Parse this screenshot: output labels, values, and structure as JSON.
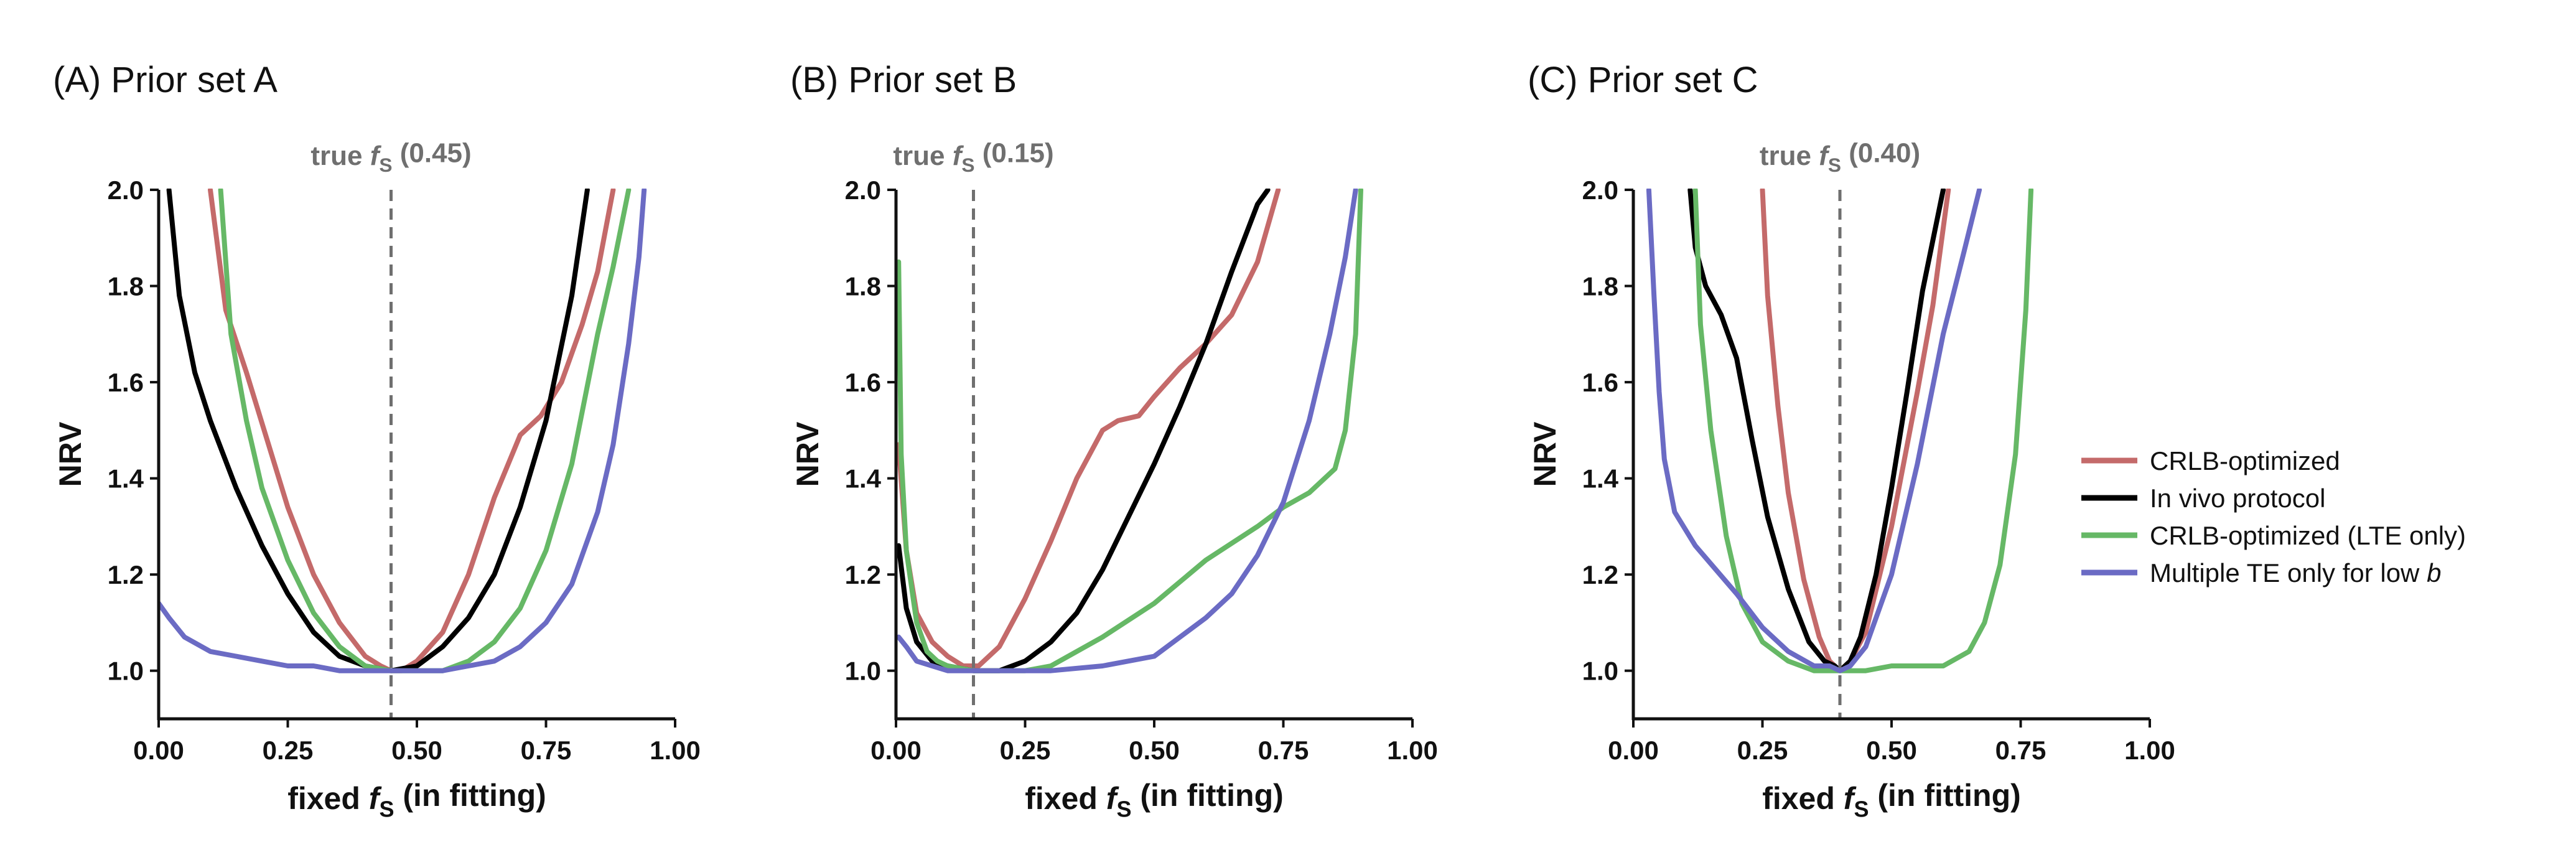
{
  "chart_data": [
    {
      "type": "line",
      "title": "(A) Prior set A",
      "xlabel": "fixed f_S (in fitting)",
      "ylabel": "NRV",
      "xlim": [
        0,
        1
      ],
      "ylim": [
        0.9,
        2.0
      ],
      "xticks": [
        "0.00",
        "0.25",
        "0.50",
        "0.75",
        "1.00"
      ],
      "yticks": [
        "1.0",
        "1.2",
        "1.4",
        "1.6",
        "1.8",
        "2.0"
      ],
      "true_line": {
        "x": 0.45,
        "label": "true f_S (0.45)"
      },
      "series": [
        {
          "name": "CRLB-optimized",
          "color": "#c46a6a",
          "x": [
            0.1,
            0.13,
            0.17,
            0.21,
            0.25,
            0.3,
            0.35,
            0.4,
            0.43,
            0.45,
            0.47,
            0.5,
            0.55,
            0.6,
            0.65,
            0.7,
            0.74,
            0.78,
            0.82,
            0.85,
            0.88
          ],
          "y": [
            2.0,
            1.75,
            1.62,
            1.48,
            1.34,
            1.2,
            1.1,
            1.03,
            1.01,
            1.0,
            1.0,
            1.02,
            1.08,
            1.2,
            1.36,
            1.49,
            1.53,
            1.6,
            1.72,
            1.83,
            2.0
          ]
        },
        {
          "name": "In vivo protocol",
          "color": "#000000",
          "x": [
            0.02,
            0.04,
            0.07,
            0.1,
            0.15,
            0.2,
            0.25,
            0.3,
            0.35,
            0.4,
            0.45,
            0.5,
            0.55,
            0.6,
            0.65,
            0.7,
            0.75,
            0.8,
            0.83
          ],
          "y": [
            2.0,
            1.78,
            1.62,
            1.52,
            1.38,
            1.26,
            1.16,
            1.08,
            1.03,
            1.01,
            1.0,
            1.01,
            1.05,
            1.11,
            1.2,
            1.34,
            1.52,
            1.78,
            2.0
          ]
        },
        {
          "name": "CRLB-optimized (LTE only)",
          "color": "#66b866",
          "x": [
            0.12,
            0.14,
            0.17,
            0.2,
            0.25,
            0.3,
            0.35,
            0.4,
            0.45,
            0.5,
            0.55,
            0.6,
            0.65,
            0.7,
            0.75,
            0.8,
            0.85,
            0.88,
            0.91
          ],
          "y": [
            2.0,
            1.7,
            1.52,
            1.38,
            1.23,
            1.12,
            1.05,
            1.01,
            1.0,
            1.0,
            1.0,
            1.02,
            1.06,
            1.13,
            1.25,
            1.43,
            1.7,
            1.84,
            2.0
          ]
        },
        {
          "name": "Multiple TE only for low b",
          "color": "#6b6bc4",
          "x": [
            0.0,
            0.02,
            0.05,
            0.1,
            0.15,
            0.2,
            0.25,
            0.3,
            0.35,
            0.4,
            0.45,
            0.5,
            0.55,
            0.6,
            0.65,
            0.7,
            0.75,
            0.8,
            0.85,
            0.88,
            0.91,
            0.93,
            0.94
          ],
          "y": [
            1.14,
            1.11,
            1.07,
            1.04,
            1.03,
            1.02,
            1.01,
            1.01,
            1.0,
            1.0,
            1.0,
            1.0,
            1.0,
            1.01,
            1.02,
            1.05,
            1.1,
            1.18,
            1.33,
            1.47,
            1.68,
            1.86,
            2.0
          ]
        }
      ]
    },
    {
      "type": "line",
      "title": "(B) Prior set B",
      "xlabel": "fixed f_S (in fitting)",
      "ylabel": "NRV",
      "xlim": [
        0,
        1
      ],
      "ylim": [
        0.9,
        2.0
      ],
      "xticks": [
        "0.00",
        "0.25",
        "0.50",
        "0.75",
        "1.00"
      ],
      "yticks": [
        "1.0",
        "1.2",
        "1.4",
        "1.6",
        "1.8",
        "2.0"
      ],
      "true_line": {
        "x": 0.15,
        "label": "true f_S (0.15)"
      },
      "series": [
        {
          "name": "CRLB-optimized",
          "color": "#c46a6a",
          "x": [
            0.005,
            0.02,
            0.04,
            0.07,
            0.1,
            0.13,
            0.16,
            0.2,
            0.25,
            0.3,
            0.35,
            0.4,
            0.43,
            0.47,
            0.5,
            0.55,
            0.6,
            0.65,
            0.7,
            0.74
          ],
          "y": [
            1.47,
            1.25,
            1.12,
            1.06,
            1.03,
            1.01,
            1.01,
            1.05,
            1.15,
            1.27,
            1.4,
            1.5,
            1.52,
            1.53,
            1.57,
            1.63,
            1.68,
            1.74,
            1.85,
            2.0
          ]
        },
        {
          "name": "In vivo protocol",
          "color": "#000000",
          "x": [
            0.005,
            0.02,
            0.04,
            0.07,
            0.1,
            0.15,
            0.2,
            0.25,
            0.3,
            0.35,
            0.4,
            0.45,
            0.5,
            0.55,
            0.6,
            0.65,
            0.7,
            0.72
          ],
          "y": [
            1.26,
            1.13,
            1.06,
            1.02,
            1.01,
            1.0,
            1.0,
            1.02,
            1.06,
            1.12,
            1.21,
            1.32,
            1.43,
            1.55,
            1.68,
            1.83,
            1.97,
            2.0
          ]
        },
        {
          "name": "CRLB-optimized (LTE only)",
          "color": "#66b866",
          "x": [
            0.005,
            0.01,
            0.02,
            0.04,
            0.06,
            0.08,
            0.1,
            0.15,
            0.2,
            0.25,
            0.3,
            0.4,
            0.5,
            0.6,
            0.7,
            0.75,
            0.8,
            0.85,
            0.87,
            0.89,
            0.9
          ],
          "y": [
            1.85,
            1.45,
            1.25,
            1.1,
            1.04,
            1.02,
            1.01,
            1.0,
            1.0,
            1.0,
            1.01,
            1.07,
            1.14,
            1.23,
            1.3,
            1.34,
            1.37,
            1.42,
            1.5,
            1.7,
            2.0
          ]
        },
        {
          "name": "Multiple TE only for low b",
          "color": "#6b6bc4",
          "x": [
            0.005,
            0.02,
            0.04,
            0.07,
            0.1,
            0.15,
            0.2,
            0.3,
            0.4,
            0.5,
            0.55,
            0.6,
            0.65,
            0.7,
            0.75,
            0.8,
            0.84,
            0.87,
            0.89
          ],
          "y": [
            1.07,
            1.05,
            1.02,
            1.01,
            1.0,
            1.0,
            1.0,
            1.0,
            1.01,
            1.03,
            1.07,
            1.11,
            1.16,
            1.24,
            1.35,
            1.52,
            1.7,
            1.86,
            2.0
          ]
        }
      ]
    },
    {
      "type": "line",
      "title": "(C) Prior set C",
      "xlabel": "fixed f_S (in fitting)",
      "ylabel": "NRV",
      "xlim": [
        0,
        1
      ],
      "ylim": [
        0.9,
        2.0
      ],
      "xticks": [
        "0.00",
        "0.25",
        "0.50",
        "0.75",
        "1.00"
      ],
      "yticks": [
        "1.0",
        "1.2",
        "1.4",
        "1.6",
        "1.8",
        "2.0"
      ],
      "true_line": {
        "x": 0.4,
        "label": "true f_S (0.40)"
      },
      "series": [
        {
          "name": "CRLB-optimized",
          "color": "#c46a6a",
          "x": [
            0.25,
            0.26,
            0.28,
            0.3,
            0.33,
            0.36,
            0.38,
            0.4,
            0.42,
            0.45,
            0.5,
            0.55,
            0.58,
            0.61
          ],
          "y": [
            2.0,
            1.78,
            1.55,
            1.37,
            1.19,
            1.07,
            1.02,
            1.0,
            1.02,
            1.08,
            1.3,
            1.58,
            1.76,
            2.0
          ]
        },
        {
          "name": "In vivo protocol",
          "color": "#000000",
          "x": [
            0.11,
            0.12,
            0.14,
            0.17,
            0.2,
            0.23,
            0.26,
            0.3,
            0.34,
            0.37,
            0.39,
            0.4,
            0.42,
            0.44,
            0.47,
            0.5,
            0.53,
            0.56,
            0.6
          ],
          "y": [
            2.0,
            1.88,
            1.8,
            1.74,
            1.65,
            1.48,
            1.32,
            1.17,
            1.06,
            1.02,
            1.01,
            1.0,
            1.02,
            1.07,
            1.2,
            1.38,
            1.58,
            1.79,
            2.0
          ]
        },
        {
          "name": "CRLB-optimized (LTE only)",
          "color": "#66b866",
          "x": [
            0.12,
            0.13,
            0.15,
            0.18,
            0.21,
            0.25,
            0.3,
            0.35,
            0.4,
            0.45,
            0.5,
            0.55,
            0.6,
            0.65,
            0.68,
            0.71,
            0.74,
            0.76,
            0.77
          ],
          "y": [
            2.0,
            1.72,
            1.5,
            1.28,
            1.14,
            1.06,
            1.02,
            1.0,
            1.0,
            1.0,
            1.01,
            1.01,
            1.01,
            1.04,
            1.1,
            1.22,
            1.45,
            1.75,
            2.0
          ]
        },
        {
          "name": "Multiple TE only for low b",
          "color": "#6b6bc4",
          "x": [
            0.03,
            0.04,
            0.05,
            0.06,
            0.08,
            0.12,
            0.16,
            0.2,
            0.25,
            0.3,
            0.35,
            0.38,
            0.4,
            0.42,
            0.45,
            0.5,
            0.55,
            0.6,
            0.64,
            0.67
          ],
          "y": [
            2.0,
            1.78,
            1.58,
            1.44,
            1.33,
            1.26,
            1.21,
            1.16,
            1.09,
            1.04,
            1.01,
            1.01,
            1.0,
            1.01,
            1.05,
            1.2,
            1.43,
            1.7,
            1.87,
            2.0
          ]
        }
      ]
    }
  ],
  "legend": {
    "placement": "right",
    "items": [
      {
        "label": "CRLB-optimized",
        "color": "#c46a6a"
      },
      {
        "label": "In vivo protocol",
        "color": "#000000"
      },
      {
        "label": "CRLB-optimized (LTE only)",
        "color": "#66b866"
      },
      {
        "label": "Multiple TE only for low b",
        "color": "#6b6bc4"
      }
    ]
  }
}
